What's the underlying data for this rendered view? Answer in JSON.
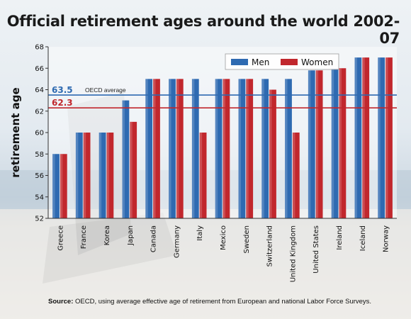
{
  "title": "Official retirement ages around the world 2002-07",
  "source": {
    "label": "Source:",
    "text": "OECD, using average effective age of retirement from European and national Labor Force Surveys."
  },
  "chart_data": {
    "type": "bar",
    "title": "Official retirement ages around the world 2002-07",
    "ylabel": "retirement age",
    "xlabel": "",
    "ylim": [
      52,
      68
    ],
    "yticks": [
      52,
      54,
      56,
      58,
      60,
      62,
      64,
      66,
      68
    ],
    "grid": false,
    "legend": "top-right",
    "categories": [
      "Greece",
      "France",
      "Korea",
      "Japan",
      "Canada",
      "Germany",
      "Italy",
      "Mexico",
      "Sweden",
      "Switzerland",
      "United Kingdom",
      "United States",
      "Ireland",
      "Iceland",
      "Norway"
    ],
    "series": [
      {
        "name": "Men",
        "color": "#2e6ab1",
        "values": [
          58,
          60,
          60,
          63,
          65,
          65,
          65,
          65,
          65,
          65,
          65,
          65.8,
          66,
          67,
          67
        ]
      },
      {
        "name": "Women",
        "color": "#c1272d",
        "values": [
          58,
          60,
          60,
          61,
          65,
          65,
          60,
          65,
          65,
          64,
          60,
          65.8,
          66,
          67,
          67
        ]
      }
    ],
    "reference_lines": [
      {
        "label": "63.5",
        "caption": "OECD average",
        "value": 63.5,
        "color": "#2e6ab1"
      },
      {
        "label": "62.3",
        "caption": "",
        "value": 62.3,
        "color": "#c1272d"
      }
    ]
  }
}
